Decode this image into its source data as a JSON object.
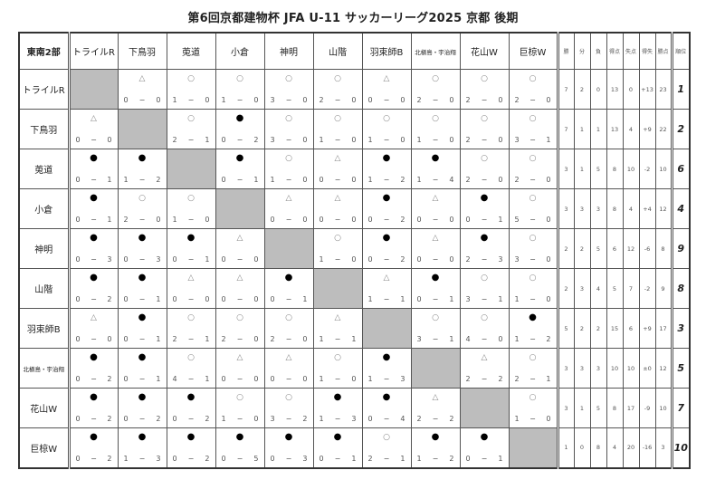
{
  "title": "第6回京都建物杯 JFA U-11 サッカーリーグ2025 京都 後期",
  "corner_label": "東南2部",
  "teams": [
    "トライルR",
    "下鳥羽",
    "莵道",
    "小倉",
    "神明",
    "山階",
    "羽束師B",
    "北槇島・宇治翔",
    "花山W",
    "巨椋W"
  ],
  "stat_headers": [
    "勝",
    "分",
    "負",
    "得点",
    "失点",
    "得失",
    "勝点",
    "順位"
  ],
  "score_separator": "−",
  "marks": {
    "win": "○",
    "draw": "△",
    "loss": "●"
  },
  "rows": [
    {
      "results": [
        null,
        [
          "△",
          "0",
          "0"
        ],
        [
          "○",
          "1",
          "0"
        ],
        [
          "○",
          "1",
          "0"
        ],
        [
          "○",
          "3",
          "0"
        ],
        [
          "○",
          "2",
          "0"
        ],
        [
          "△",
          "0",
          "0"
        ],
        [
          "○",
          "2",
          "0"
        ],
        [
          "○",
          "2",
          "0"
        ],
        [
          "○",
          "2",
          "0"
        ]
      ],
      "stats": [
        "7",
        "2",
        "0",
        "13",
        "0",
        "+13",
        "23"
      ],
      "rank": "1"
    },
    {
      "results": [
        [
          "△",
          "0",
          "0"
        ],
        null,
        [
          "○",
          "2",
          "1"
        ],
        [
          "●",
          "0",
          "2"
        ],
        [
          "○",
          "3",
          "0"
        ],
        [
          "○",
          "1",
          "0"
        ],
        [
          "○",
          "1",
          "0"
        ],
        [
          "○",
          "1",
          "0"
        ],
        [
          "○",
          "2",
          "0"
        ],
        [
          "○",
          "3",
          "1"
        ]
      ],
      "stats": [
        "7",
        "1",
        "1",
        "13",
        "4",
        "+9",
        "22"
      ],
      "rank": "2"
    },
    {
      "results": [
        [
          "●",
          "0",
          "1"
        ],
        [
          "●",
          "1",
          "2"
        ],
        null,
        [
          "●",
          "0",
          "1"
        ],
        [
          "○",
          "1",
          "0"
        ],
        [
          "△",
          "0",
          "0"
        ],
        [
          "●",
          "1",
          "2"
        ],
        [
          "●",
          "1",
          "4"
        ],
        [
          "○",
          "2",
          "0"
        ],
        [
          "○",
          "2",
          "0"
        ]
      ],
      "stats": [
        "3",
        "1",
        "5",
        "8",
        "10",
        "-2",
        "10"
      ],
      "rank": "6"
    },
    {
      "results": [
        [
          "●",
          "0",
          "1"
        ],
        [
          "○",
          "2",
          "0"
        ],
        [
          "○",
          "1",
          "0"
        ],
        null,
        [
          "△",
          "0",
          "0"
        ],
        [
          "△",
          "0",
          "0"
        ],
        [
          "●",
          "0",
          "2"
        ],
        [
          "△",
          "0",
          "0"
        ],
        [
          "●",
          "0",
          "1"
        ],
        [
          "○",
          "5",
          "0"
        ]
      ],
      "stats": [
        "3",
        "3",
        "3",
        "8",
        "4",
        "+4",
        "12"
      ],
      "rank": "4"
    },
    {
      "results": [
        [
          "●",
          "0",
          "3"
        ],
        [
          "●",
          "0",
          "3"
        ],
        [
          "●",
          "0",
          "1"
        ],
        [
          "△",
          "0",
          "0"
        ],
        null,
        [
          "○",
          "1",
          "0"
        ],
        [
          "●",
          "0",
          "2"
        ],
        [
          "△",
          "0",
          "0"
        ],
        [
          "●",
          "2",
          "3"
        ],
        [
          "○",
          "3",
          "0"
        ]
      ],
      "stats": [
        "2",
        "2",
        "5",
        "6",
        "12",
        "-6",
        "8"
      ],
      "rank": "9"
    },
    {
      "results": [
        [
          "●",
          "0",
          "2"
        ],
        [
          "●",
          "0",
          "1"
        ],
        [
          "△",
          "0",
          "0"
        ],
        [
          "△",
          "0",
          "0"
        ],
        [
          "●",
          "0",
          "1"
        ],
        null,
        [
          "△",
          "1",
          "1"
        ],
        [
          "●",
          "0",
          "1"
        ],
        [
          "○",
          "3",
          "1"
        ],
        [
          "○",
          "1",
          "0"
        ]
      ],
      "stats": [
        "2",
        "3",
        "4",
        "5",
        "7",
        "-2",
        "9"
      ],
      "rank": "8"
    },
    {
      "results": [
        [
          "△",
          "0",
          "0"
        ],
        [
          "●",
          "0",
          "1"
        ],
        [
          "○",
          "2",
          "1"
        ],
        [
          "○",
          "2",
          "0"
        ],
        [
          "○",
          "2",
          "0"
        ],
        [
          "△",
          "1",
          "1"
        ],
        null,
        [
          "○",
          "3",
          "1"
        ],
        [
          "○",
          "4",
          "0"
        ],
        [
          "●",
          "1",
          "2"
        ]
      ],
      "stats": [
        "5",
        "2",
        "2",
        "15",
        "6",
        "+9",
        "17"
      ],
      "rank": "3"
    },
    {
      "results": [
        [
          "●",
          "0",
          "2"
        ],
        [
          "●",
          "0",
          "1"
        ],
        [
          "○",
          "4",
          "1"
        ],
        [
          "△",
          "0",
          "0"
        ],
        [
          "△",
          "0",
          "0"
        ],
        [
          "○",
          "1",
          "0"
        ],
        [
          "●",
          "1",
          "3"
        ],
        null,
        [
          "△",
          "2",
          "2"
        ],
        [
          "○",
          "2",
          "1"
        ]
      ],
      "stats": [
        "3",
        "3",
        "3",
        "10",
        "10",
        "±0",
        "12"
      ],
      "rank": "5"
    },
    {
      "results": [
        [
          "●",
          "0",
          "2"
        ],
        [
          "●",
          "0",
          "2"
        ],
        [
          "●",
          "0",
          "2"
        ],
        [
          "○",
          "1",
          "0"
        ],
        [
          "○",
          "3",
          "2"
        ],
        [
          "●",
          "1",
          "3"
        ],
        [
          "●",
          "0",
          "4"
        ],
        [
          "△",
          "2",
          "2"
        ],
        null,
        [
          "○",
          "1",
          "0"
        ]
      ],
      "stats": [
        "3",
        "1",
        "5",
        "8",
        "17",
        "-9",
        "10"
      ],
      "rank": "7"
    },
    {
      "results": [
        [
          "●",
          "0",
          "2"
        ],
        [
          "●",
          "1",
          "3"
        ],
        [
          "●",
          "0",
          "2"
        ],
        [
          "●",
          "0",
          "5"
        ],
        [
          "●",
          "0",
          "3"
        ],
        [
          "●",
          "0",
          "1"
        ],
        [
          "○",
          "2",
          "1"
        ],
        [
          "●",
          "1",
          "2"
        ],
        [
          "●",
          "0",
          "1"
        ],
        null
      ],
      "stats": [
        "1",
        "0",
        "8",
        "4",
        "20",
        "-16",
        "3"
      ],
      "rank": "10"
    }
  ]
}
